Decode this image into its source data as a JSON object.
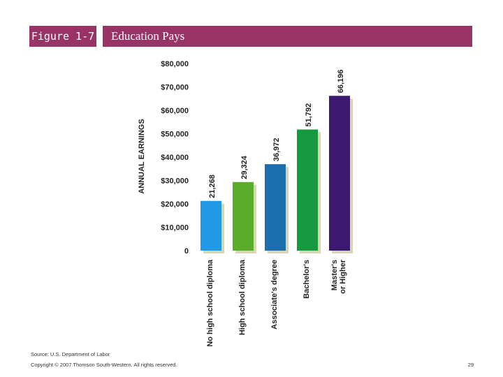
{
  "header": {
    "figure_label": "Figure 1-7",
    "title": "Education Pays"
  },
  "chart_data": {
    "type": "bar",
    "title": "Education Pays",
    "xlabel": "",
    "ylabel": "ANNUAL EARNINGS",
    "ylim": [
      0,
      80000
    ],
    "yticks": [
      0,
      10000,
      20000,
      30000,
      40000,
      50000,
      60000,
      70000,
      80000
    ],
    "ytick_labels": [
      "0",
      "$10,000",
      "$20,000",
      "$30,000",
      "$40,000",
      "$50,000",
      "$60,000",
      "$70,000",
      "$80,000"
    ],
    "categories": [
      "No high school diploma",
      "High school diploma",
      "Associate's degree",
      "Bachelor's",
      "Master's or Higher"
    ],
    "values": [
      21268,
      29324,
      36972,
      51792,
      66196
    ],
    "value_labels": [
      "21,268",
      "29,324",
      "36,972",
      "51,792",
      "66,196"
    ],
    "colors": [
      "#2299e6",
      "#5aac2a",
      "#1c6fac",
      "#159a40",
      "#3c1870"
    ],
    "shadow_color": "#d6d5b4",
    "grid": false
  },
  "footer": {
    "source": "Source: U.S. Department of Labor",
    "copyright": "Copyright © 2007 Thomson South-Western. All rights reserved.",
    "page_number": "29"
  }
}
